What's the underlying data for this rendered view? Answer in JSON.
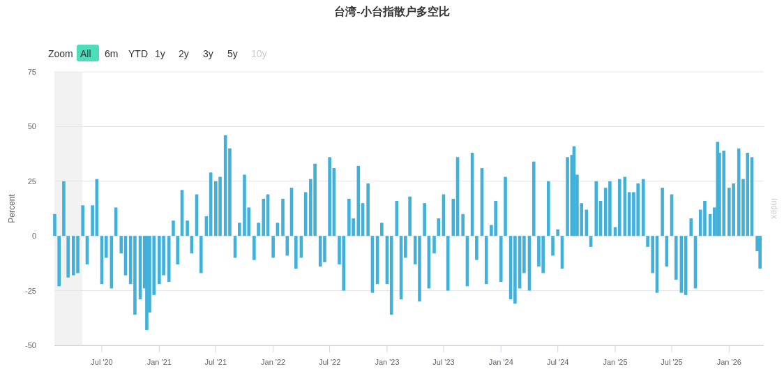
{
  "chart_data": {
    "type": "bar",
    "title": "台湾-小台指散户多空比",
    "ylabel": "Percent",
    "y2label": "Index",
    "annotations": [
      "Zoom",
      "All",
      "6m",
      "YTD",
      "1y",
      "2y",
      "3y",
      "5y",
      "10y"
    ],
    "x": [
      "2020-02-01",
      "2020-02-15",
      "2020-03-01",
      "2020-03-15",
      "2020-04-01",
      "2020-04-15",
      "2020-05-01",
      "2020-05-15",
      "2020-06-01",
      "2020-06-15",
      "2020-07-01",
      "2020-07-15",
      "2020-08-01",
      "2020-08-15",
      "2020-09-01",
      "2020-09-15",
      "2020-10-01",
      "2020-10-15",
      "2020-11-01",
      "2020-11-15",
      "2020-11-22",
      "2020-12-01",
      "2020-12-15",
      "2021-01-01",
      "2021-01-15",
      "2021-02-01",
      "2021-02-15",
      "2021-03-01",
      "2021-03-15",
      "2021-04-01",
      "2021-04-15",
      "2021-05-01",
      "2021-05-15",
      "2021-06-01",
      "2021-06-15",
      "2021-07-01",
      "2021-07-15",
      "2021-08-01",
      "2021-08-15",
      "2021-09-01",
      "2021-09-15",
      "2021-10-01",
      "2021-10-15",
      "2021-11-01",
      "2021-11-15",
      "2021-12-01",
      "2021-12-15",
      "2022-01-01",
      "2022-01-15",
      "2022-02-01",
      "2022-02-15",
      "2022-03-01",
      "2022-03-15",
      "2022-04-01",
      "2022-04-15",
      "2022-05-01",
      "2022-05-15",
      "2022-06-01",
      "2022-06-15",
      "2022-07-01",
      "2022-07-15",
      "2022-08-01",
      "2022-08-15",
      "2022-09-01",
      "2022-09-15",
      "2022-10-01",
      "2022-10-15",
      "2022-11-01",
      "2022-11-15",
      "2022-12-01",
      "2022-12-15",
      "2023-01-01",
      "2023-01-15",
      "2023-02-01",
      "2023-02-15",
      "2023-03-01",
      "2023-03-15",
      "2023-04-01",
      "2023-04-15",
      "2023-05-01",
      "2023-05-15",
      "2023-06-01",
      "2023-06-15",
      "2023-07-01",
      "2023-07-15",
      "2023-08-01",
      "2023-08-15",
      "2023-09-01",
      "2023-09-15",
      "2023-10-01",
      "2023-10-15",
      "2023-11-01",
      "2023-11-15",
      "2023-12-01",
      "2023-12-15",
      "2024-01-01",
      "2024-01-15",
      "2024-02-01",
      "2024-02-15",
      "2024-03-01",
      "2024-03-15",
      "2024-04-01",
      "2024-04-15",
      "2024-05-01",
      "2024-05-15",
      "2024-06-01",
      "2024-06-15",
      "2024-07-01",
      "2024-07-15",
      "2024-08-01",
      "2024-08-15",
      "2024-08-22",
      "2024-09-01",
      "2024-09-15",
      "2024-10-01",
      "2024-10-15",
      "2024-11-01",
      "2024-11-15",
      "2024-12-01",
      "2024-12-15",
      "2025-01-01",
      "2025-01-15",
      "2025-02-01",
      "2025-02-15",
      "2025-03-01",
      "2025-03-15",
      "2025-04-01",
      "2025-04-15",
      "2025-05-01",
      "2025-05-15",
      "2025-06-01",
      "2025-06-15",
      "2025-07-01",
      "2025-07-15",
      "2025-08-01",
      "2025-08-15",
      "2025-09-01",
      "2025-09-15",
      "2025-10-01",
      "2025-10-15",
      "2025-11-01",
      "2025-11-15",
      "2025-11-25",
      "2025-12-01",
      "2025-12-15",
      "2026-01-01",
      "2026-01-15",
      "2026-02-01",
      "2026-02-15",
      "2026-03-01",
      "2026-03-15",
      "2026-04-01",
      "2026-04-10"
    ],
    "series": [
      {
        "color": "#41b0da",
        "values": [
          10,
          -23,
          25,
          -19,
          -18,
          -17,
          14,
          -13,
          14,
          26,
          -22,
          -10,
          -24,
          13,
          -8,
          -18,
          -22,
          -36,
          -29,
          -24,
          -43,
          -35,
          -27,
          -22,
          -18,
          -21,
          7,
          -13,
          21,
          7,
          -8,
          19,
          -17,
          9,
          29,
          25,
          27,
          46,
          40,
          -10,
          6,
          28,
          13,
          -11,
          6,
          17,
          19,
          -10,
          6,
          17,
          -9,
          22,
          -15,
          -10,
          20,
          26,
          33,
          -14,
          -12,
          36,
          31,
          -13,
          -25,
          17,
          8,
          32,
          15,
          24,
          -26,
          -22,
          6,
          -22,
          -36,
          16,
          -29,
          -10,
          18,
          -13,
          -30,
          15,
          -24,
          -8,
          8,
          19,
          -25,
          17,
          36,
          10,
          -23,
          38,
          -11,
          31,
          -22,
          5,
          16,
          -21,
          27,
          -29,
          -31,
          -24,
          -17,
          -25,
          34,
          -14,
          -17,
          25,
          -9,
          3,
          -15,
          36,
          37,
          41,
          28,
          15,
          12,
          -5,
          25,
          16,
          22,
          25,
          4,
          26,
          27,
          20,
          20,
          24,
          26,
          -5,
          -17,
          -26,
          22,
          -14,
          19,
          -20,
          -26,
          -27,
          8,
          -24,
          12,
          16,
          10,
          13,
          43,
          38,
          39,
          22,
          24,
          40,
          26,
          38,
          36,
          -7,
          -15
        ]
      }
    ],
    "xlim": [
      "2020-01-31",
      "2026-04-22"
    ],
    "xticks": [
      {
        "value": "2020-07-01",
        "label": "Jul '20"
      },
      {
        "value": "2021-01-01",
        "label": "Jan '21"
      },
      {
        "value": "2021-07-01",
        "label": "Jul '21"
      },
      {
        "value": "2022-01-01",
        "label": "Jan '22"
      },
      {
        "value": "2022-07-01",
        "label": "Jul '22"
      },
      {
        "value": "2023-01-01",
        "label": "Jan '23"
      },
      {
        "value": "2023-07-01",
        "label": "Jul '23"
      },
      {
        "value": "2024-01-01",
        "label": "Jan '24"
      },
      {
        "value": "2024-07-01",
        "label": "Jul '24"
      },
      {
        "value": "2025-01-01",
        "label": "Jan '25"
      },
      {
        "value": "2025-07-01",
        "label": "Jul '25"
      },
      {
        "value": "2026-01-01",
        "label": "Jan '26"
      }
    ],
    "ylim": [
      -50,
      75
    ],
    "yticks": [
      -50,
      -25,
      0,
      25,
      50,
      75
    ],
    "bands": [
      {
        "axis": "x",
        "from": "2020-01-31",
        "to": "2020-04-29",
        "color": "#f2f2f2"
      }
    ],
    "grid": "y"
  }
}
